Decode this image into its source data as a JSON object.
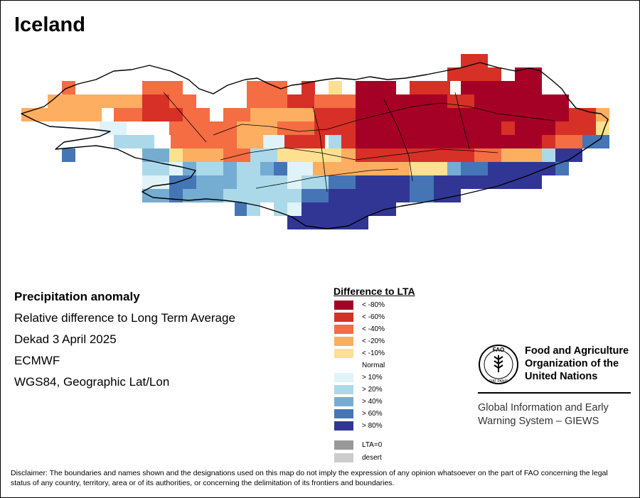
{
  "title": "Iceland",
  "info": {
    "heading": "Precipitation anomaly",
    "line1": "Relative difference to Long Term Average",
    "line2": "Dekad 3 April 2025",
    "line3": "ECMWF",
    "line4": "WGS84, Geographic Lat/Lon"
  },
  "legend": {
    "title": "Difference to LTA",
    "items": [
      {
        "label": "< -80%",
        "color": "#a50026"
      },
      {
        "label": "< -60%",
        "color": "#d73027"
      },
      {
        "label": "< -40%",
        "color": "#f46d43"
      },
      {
        "label": "< -20%",
        "color": "#fdae61"
      },
      {
        "label": "< -10%",
        "color": "#fee090"
      },
      {
        "label": "Normal",
        "color": "#ffffff"
      },
      {
        "label": "> 10%",
        "color": "#e0f3f8"
      },
      {
        "label": "> 20%",
        "color": "#abd9e9"
      },
      {
        "label": "> 40%",
        "color": "#74add1"
      },
      {
        "label": "> 60%",
        "color": "#4575b4"
      },
      {
        "label": "> 80%",
        "color": "#313695"
      },
      {
        "label": "LTA=0",
        "color": "#999999"
      },
      {
        "label": "desert",
        "color": "#cccccc"
      }
    ]
  },
  "organization": {
    "name_line1": "Food and Agriculture",
    "name_line2": "Organization of the",
    "name_line3": "United Nations",
    "logo_text_top": "FAO",
    "logo_text_bottom": "FIAT PANIS",
    "system_line1": "Global Information and Early",
    "system_line2": "Warning System – GIEWS"
  },
  "disclaimer": "Disclaimer: The boundaries and names shown and the designations used on this map do not imply the expression of any opinion whatsoever on the part of FAO concerning the legal status of any country, territory, area or of its authorities, or concerning the delimitation of its frontiers and boundaries."
}
